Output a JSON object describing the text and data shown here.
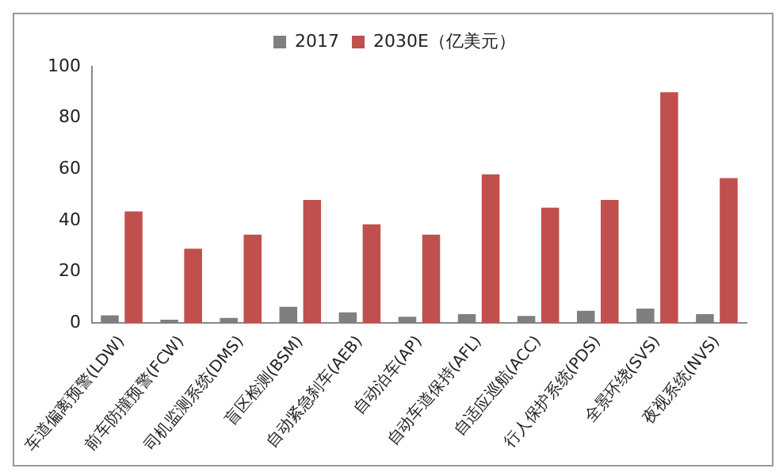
{
  "chart_data": {
    "type": "bar",
    "categories": [
      "车道偏离预警(LDW)",
      "前车防撞预警(FCW)",
      "司机监测系统(DMS)",
      "盲区检测(BSM)",
      "自动紧急刹车(AEB)",
      "自动泊车(AP)",
      "自动车道保持(AFL)",
      "自适应巡航(ACC)",
      "行人保护系统(PDS)",
      "全景环绕(SVS)",
      "夜视系统(NVS)"
    ],
    "series": [
      {
        "name": "2017",
        "color": "#7f7f7f",
        "values": [
          3,
          1.3,
          2,
          6.3,
          4.2,
          2.5,
          3.5,
          2.8,
          4.8,
          5.6,
          3.5
        ]
      },
      {
        "name": "2030E（亿美元）",
        "color": "#c0504d",
        "values": [
          43.5,
          29,
          34.5,
          48,
          38.5,
          34.5,
          58,
          45,
          48,
          90,
          56.5
        ]
      }
    ],
    "ylim": [
      0,
      100
    ],
    "yticks": [
      0,
      20,
      40,
      60,
      80,
      100
    ],
    "grid": false,
    "legend": "top"
  }
}
